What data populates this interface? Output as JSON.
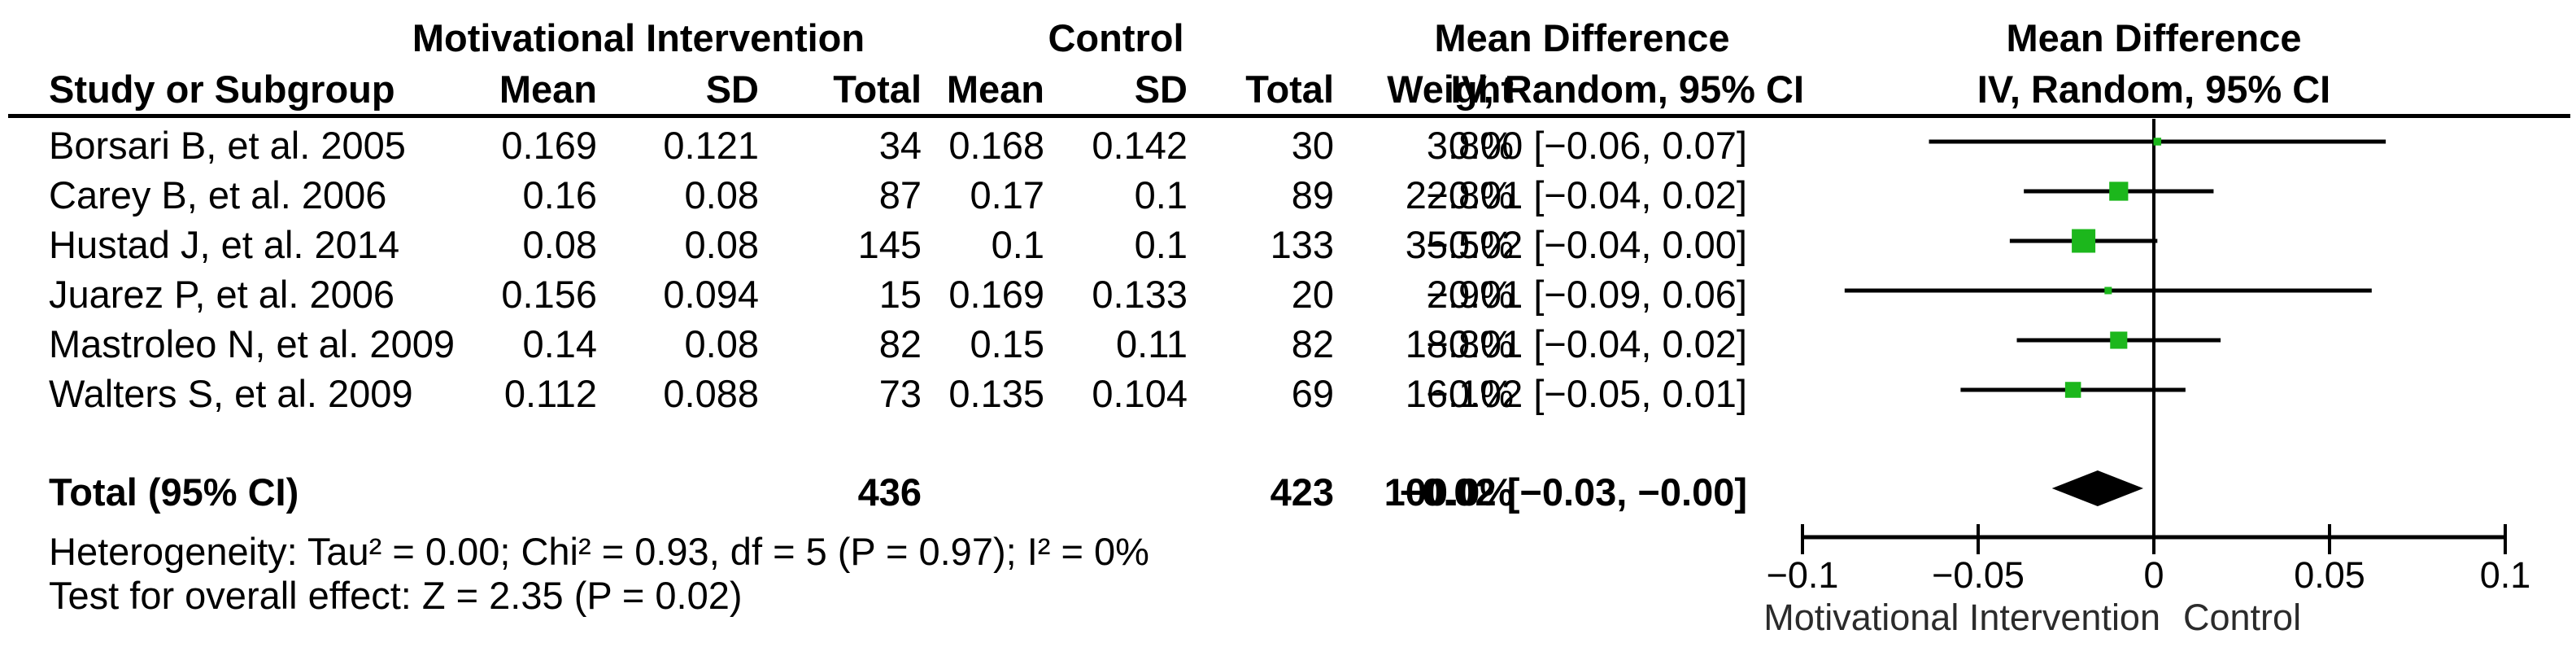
{
  "table": {
    "group_headers": {
      "intervention": "Motivational Intervention",
      "control": "Control",
      "md_text_col": "Mean Difference",
      "md_plot_col": "Mean Difference"
    },
    "col_headers": {
      "study": "Study or Subgroup",
      "mean1": "Mean",
      "sd1": "SD",
      "total1": "Total",
      "mean2": "Mean",
      "sd2": "SD",
      "total2": "Total",
      "weight": "Weight",
      "ci_text": "IV, Random, 95% CI",
      "ci_plot": "IV, Random, 95% CI"
    },
    "rows": [
      {
        "study": "Borsari B, et al. 2005",
        "mean1": "0.169",
        "sd1": "0.121",
        "total1": "34",
        "mean2": "0.168",
        "sd2": "0.142",
        "total2": "30",
        "weight": "3.8%",
        "ci": "0.00 [−0.06, 0.07]"
      },
      {
        "study": "Carey B, et al. 2006",
        "mean1": "0.16",
        "sd1": "0.08",
        "total1": "87",
        "mean2": "0.17",
        "sd2": "0.1",
        "total2": "89",
        "weight": "22.8%",
        "ci": "−0.01 [−0.04, 0.02]"
      },
      {
        "study": "Hustad J, et al. 2014",
        "mean1": "0.08",
        "sd1": "0.08",
        "total1": "145",
        "mean2": "0.1",
        "sd2": "0.1",
        "total2": "133",
        "weight": "35.5%",
        "ci": "−0.02 [−0.04, 0.00]"
      },
      {
        "study": "Juarez P, et al. 2006",
        "mean1": "0.156",
        "sd1": "0.094",
        "total1": "15",
        "mean2": "0.169",
        "sd2": "0.133",
        "total2": "20",
        "weight": "2.9%",
        "ci": "−0.01 [−0.09, 0.06]"
      },
      {
        "study": "Mastroleo N, et al. 2009",
        "mean1": "0.14",
        "sd1": "0.08",
        "total1": "82",
        "mean2": "0.15",
        "sd2": "0.11",
        "total2": "82",
        "weight": "18.8%",
        "ci": "−0.01 [−0.04, 0.02]"
      },
      {
        "study": "Walters S, et al. 2009",
        "mean1": "0.112",
        "sd1": "0.088",
        "total1": "73",
        "mean2": "0.135",
        "sd2": "0.104",
        "total2": "69",
        "weight": "16.1%",
        "ci": "−0.02 [−0.05, 0.01]"
      }
    ],
    "total_row": {
      "label": "Total (95% CI)",
      "total1": "436",
      "total2": "423",
      "weight": "100.0%",
      "ci": "−0.02 [−0.03, −0.00]"
    },
    "heterogeneity": "Heterogeneity: Tau² = 0.00; Chi² = 0.93, df = 5 (P = 0.97); I² = 0%",
    "overall_effect": "Test for overall effect: Z = 2.35 (P = 0.02)"
  },
  "chart_data": {
    "type": "forest",
    "effect_measure": "Mean Difference, IV, Random, 95% CI",
    "xlim": [
      -0.1,
      0.1
    ],
    "x_ticks": [
      -0.1,
      -0.05,
      0,
      0.05,
      0.1
    ],
    "x_tick_labels": [
      "−0.1",
      "−0.05",
      "0",
      "0.05",
      "0.1"
    ],
    "favours_left": "Motivational Intervention",
    "favours_right": "Control",
    "marker_color": "#1CB71C",
    "line_color": "#000000",
    "studies": [
      {
        "name": "Borsari B, et al. 2005",
        "md": 0.001,
        "ci_low": -0.064,
        "ci_high": 0.066,
        "weight_pct": 3.8
      },
      {
        "name": "Carey B, et al. 2006",
        "md": -0.01,
        "ci_low": -0.037,
        "ci_high": 0.017,
        "weight_pct": 22.8
      },
      {
        "name": "Hustad J, et al. 2014",
        "md": -0.02,
        "ci_low": -0.041,
        "ci_high": 0.001,
        "weight_pct": 35.5
      },
      {
        "name": "Juarez P, et al. 2006",
        "md": -0.013,
        "ci_low": -0.088,
        "ci_high": 0.062,
        "weight_pct": 2.9
      },
      {
        "name": "Mastroleo N, et al. 2009",
        "md": -0.01,
        "ci_low": -0.039,
        "ci_high": 0.019,
        "weight_pct": 18.8
      },
      {
        "name": "Walters S, et al. 2009",
        "md": -0.023,
        "ci_low": -0.055,
        "ci_high": 0.009,
        "weight_pct": 16.1
      }
    ],
    "total": {
      "md": -0.016,
      "ci_low": -0.029,
      "ci_high": -0.003,
      "weight_pct": 100.0
    }
  }
}
